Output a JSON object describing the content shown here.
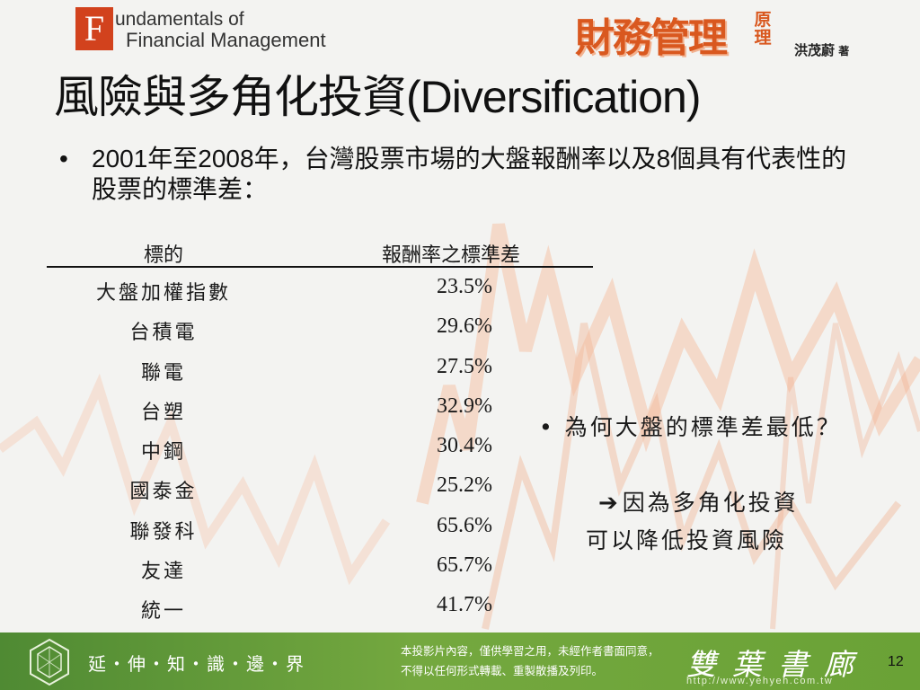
{
  "header": {
    "logo_letter": "F",
    "logo_line1": "undamentals of",
    "logo_line2": "Financial Management",
    "book_title": "財務管理",
    "book_title_suffix": "原理",
    "author": "洪茂蔚",
    "author_suffix": "著"
  },
  "slide": {
    "title": "風險與多角化投資(Diversification)",
    "bullet": "•",
    "intro": "2001年至2008年，台灣股票市場的大盤報酬率以及8個具有代表性的股票的標準差："
  },
  "table": {
    "columns": [
      "標的",
      "報酬率之標準差"
    ],
    "rows": [
      {
        "name": "大盤加權指數",
        "value": "23.5%"
      },
      {
        "name": "台積電",
        "value": "29.6%"
      },
      {
        "name": "聯電",
        "value": "27.5%"
      },
      {
        "name": "台塑",
        "value": "32.9%"
      },
      {
        "name": "中鋼",
        "value": "30.4%"
      },
      {
        "name": "國泰金",
        "value": "25.2%"
      },
      {
        "name": "聯發科",
        "value": "65.6%"
      },
      {
        "name": "友達",
        "value": "65.7%"
      },
      {
        "name": "統一",
        "value": "41.7%"
      }
    ]
  },
  "note": {
    "question": "• 為何大盤的標準差最低？",
    "arrow_icon": "right-arrow-icon",
    "answer_line1": "因為多角化投資",
    "answer_line2": "可以降低投資風險"
  },
  "footer": {
    "motto": "延・伸・知・識・邊・界",
    "copyright_line1": "本投影片內容，僅供學習之用，未經作者書面同意，",
    "copyright_line2": "不得以任何形式轉載、重製散播及列印。",
    "publisher": "雙葉書廊",
    "url": "http://www.yehyeh.com.tw",
    "page_number": "12"
  },
  "colors": {
    "accent": "#d9581f",
    "footer_green": "#6aa236",
    "text": "#111111"
  }
}
